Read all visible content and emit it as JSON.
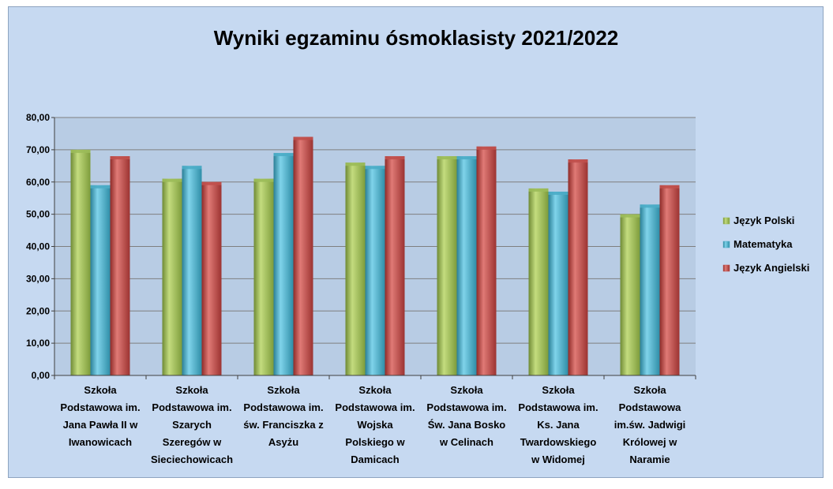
{
  "chart_data": {
    "type": "bar",
    "title": "Wyniki egzaminu ósmoklasisty 2021/2022",
    "xlabel": "",
    "ylabel": "",
    "ylim": [
      0,
      80
    ],
    "yticks": [
      "0,00",
      "10,00",
      "20,00",
      "30,00",
      "40,00",
      "50,00",
      "60,00",
      "70,00",
      "80,00"
    ],
    "grid": true,
    "legend_position": "right",
    "categories": [
      [
        "Szkoła",
        "Podstawowa im.",
        "Jana Pawła II w",
        "Iwanowicach"
      ],
      [
        "Szkoła",
        "Podstawowa im.",
        "Szarych",
        "Szeregów w",
        "Sieciechowicach"
      ],
      [
        "Szkoła",
        "Podstawowa im.",
        "św. Franciszka z",
        "Asyżu"
      ],
      [
        "Szkoła",
        "Podstawowa im.",
        "Wojska",
        "Polskiego w",
        "Damicach"
      ],
      [
        "Szkoła",
        "Podstawowa im.",
        "Św. Jana Bosko",
        "w Celinach"
      ],
      [
        "Szkoła",
        "Podstawowa im.",
        "Ks. Jana",
        "Twardowskiego",
        "w Widomej"
      ],
      [
        "Szkoła",
        "Podstawowa",
        "im.św. Jadwigi",
        "Królowej w",
        "Naramie"
      ]
    ],
    "series": [
      {
        "name": "Język Polski",
        "color": "#9bbb59",
        "values": [
          70,
          61,
          61,
          66,
          68,
          58,
          50
        ]
      },
      {
        "name": "Matematyka",
        "color": "#4bacc6",
        "values": [
          59,
          65,
          69,
          65,
          68,
          57,
          53
        ]
      },
      {
        "name": "Język Angielski",
        "color": "#c0504d",
        "values": [
          68,
          60,
          74,
          68,
          71,
          67,
          59
        ]
      }
    ]
  }
}
